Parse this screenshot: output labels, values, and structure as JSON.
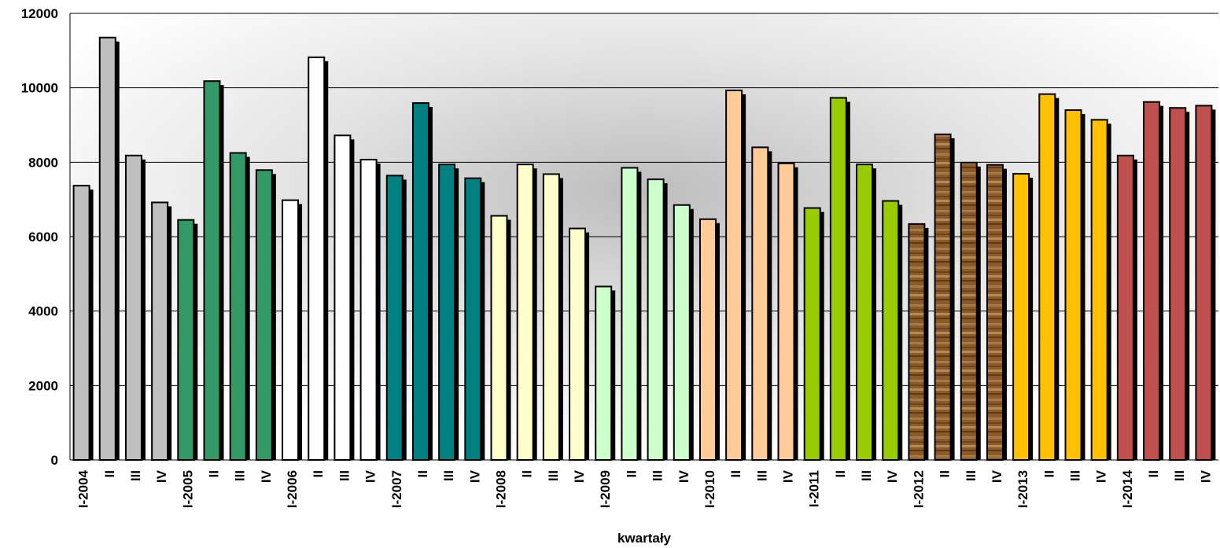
{
  "chart_data": {
    "type": "bar",
    "xlabel": "kwartały",
    "ylabel": "",
    "ylim": [
      0,
      12000
    ],
    "yticks": [
      0,
      2000,
      4000,
      6000,
      8000,
      10000,
      12000
    ],
    "grid": true,
    "categories": [
      "I-2004",
      "II",
      "III",
      "IV",
      "I-2005",
      "II",
      "III",
      "IV",
      "I-2006",
      "II",
      "III",
      "IV",
      "I-2007",
      "II",
      "III",
      "IV",
      "I-2008",
      "II",
      "III",
      "IV",
      "I-2009",
      "II",
      "III",
      "IV",
      "I-2010",
      "II",
      "III",
      "IV",
      "I-2011",
      "II",
      "III",
      "IV",
      "I-2012",
      "II",
      "III",
      "IV",
      "I-2013",
      "II",
      "III",
      "IV",
      "I-2014",
      "II",
      "III",
      "IV"
    ],
    "values": [
      7370,
      11350,
      8180,
      6920,
      6450,
      10180,
      8250,
      7790,
      6980,
      10820,
      8720,
      8070,
      7640,
      9590,
      7940,
      7570,
      6560,
      7940,
      7680,
      6220,
      4660,
      7850,
      7540,
      6850,
      6470,
      9930,
      8400,
      7970,
      6770,
      9730,
      7940,
      6960,
      6340,
      8750,
      7990,
      7930,
      7690,
      9830,
      9400,
      9140,
      8180,
      9620,
      9460,
      9520
    ],
    "year_groups": [
      {
        "year": "2004",
        "color": "#c0c0c0"
      },
      {
        "year": "2005",
        "color": "#339966"
      },
      {
        "year": "2006",
        "color": "#ffffff"
      },
      {
        "year": "2007",
        "color": "#008080"
      },
      {
        "year": "2008",
        "color": "#ffffcc"
      },
      {
        "year": "2009",
        "color": "#ccffcc"
      },
      {
        "year": "2010",
        "color": "#ffcc99"
      },
      {
        "year": "2011",
        "color": "#99cc00"
      },
      {
        "year": "2012",
        "color": "#8b5a2b"
      },
      {
        "year": "2013",
        "color": "#ffc000"
      },
      {
        "year": "2014",
        "color": "#c0504d"
      }
    ]
  }
}
